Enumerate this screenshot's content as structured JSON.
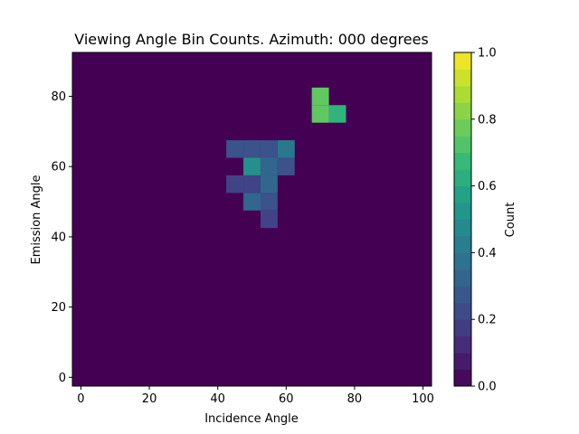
{
  "chart_data": {
    "type": "heatmap",
    "title": "Viewing Angle Bin Counts. Azimuth: 000 degrees",
    "xlabel": "Incidence Angle",
    "ylabel": "Emission Angle",
    "colorbar_label": "Count",
    "colormap": "viridis",
    "bin_size": 5,
    "xlim": [
      -2.5,
      102.5
    ],
    "ylim": [
      -2.5,
      92.5
    ],
    "clim": [
      0.0,
      1.0
    ],
    "background_value": 0.0,
    "x_ticks": [
      0,
      20,
      40,
      60,
      80,
      100
    ],
    "y_ticks": [
      0,
      20,
      40,
      60,
      80
    ],
    "colorbar_ticks": [
      "0.0",
      "0.2",
      "0.4",
      "0.6",
      "0.8",
      "1.0"
    ],
    "cells": [
      {
        "x": 70,
        "y": 80,
        "value": 0.75
      },
      {
        "x": 70,
        "y": 75,
        "value": 0.75
      },
      {
        "x": 75,
        "y": 75,
        "value": 0.65
      },
      {
        "x": 45,
        "y": 65,
        "value": 0.25
      },
      {
        "x": 50,
        "y": 65,
        "value": 0.25
      },
      {
        "x": 55,
        "y": 65,
        "value": 0.25
      },
      {
        "x": 60,
        "y": 65,
        "value": 0.4
      },
      {
        "x": 50,
        "y": 60,
        "value": 0.5
      },
      {
        "x": 55,
        "y": 60,
        "value": 0.33
      },
      {
        "x": 60,
        "y": 60,
        "value": 0.25
      },
      {
        "x": 45,
        "y": 55,
        "value": 0.2
      },
      {
        "x": 50,
        "y": 55,
        "value": 0.2
      },
      {
        "x": 55,
        "y": 55,
        "value": 0.33
      },
      {
        "x": 50,
        "y": 50,
        "value": 0.33
      },
      {
        "x": 55,
        "y": 50,
        "value": 0.25
      },
      {
        "x": 55,
        "y": 45,
        "value": 0.2
      }
    ]
  }
}
